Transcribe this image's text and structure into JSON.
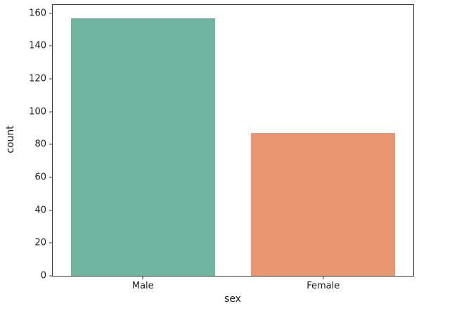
{
  "chart_data": {
    "type": "bar",
    "title": "",
    "xlabel": "sex",
    "ylabel": "count",
    "categories": [
      "Male",
      "Female"
    ],
    "values": [
      157,
      87
    ],
    "bar_colors": [
      "#70b5a0",
      "#e9956f"
    ],
    "ylim": [
      0,
      165
    ],
    "yticks": [
      0,
      20,
      40,
      60,
      80,
      100,
      120,
      140,
      160
    ],
    "bar_width_fraction": 0.4,
    "grid": false,
    "legend_position": "none"
  },
  "figure": {
    "background": "#ffffff",
    "spine_color": "#3a3a3a",
    "text_color": "#1a1a1a"
  }
}
